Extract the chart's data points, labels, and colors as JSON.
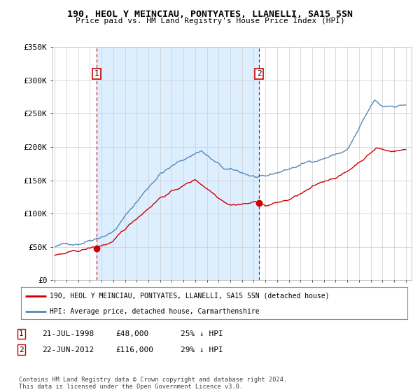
{
  "title": "190, HEOL Y MEINCIAU, PONTYATES, LLANELLI, SA15 5SN",
  "subtitle": "Price paid vs. HM Land Registry's House Price Index (HPI)",
  "legend_line1": "190, HEOL Y MEINCIAU, PONTYATES, LLANELLI, SA15 5SN (detached house)",
  "legend_line2": "HPI: Average price, detached house, Carmarthenshire",
  "annotation1_date": "21-JUL-1998",
  "annotation1_price": "£48,000",
  "annotation1_hpi": "25% ↓ HPI",
  "annotation2_date": "22-JUN-2012",
  "annotation2_price": "£116,000",
  "annotation2_hpi": "29% ↓ HPI",
  "footer": "Contains HM Land Registry data © Crown copyright and database right 2024.\nThis data is licensed under the Open Government Licence v3.0.",
  "red_color": "#cc0000",
  "blue_color": "#5588bb",
  "shade_color": "#ddeeff",
  "point1_x": 1998.55,
  "point1_y": 48000,
  "point2_x": 2012.47,
  "point2_y": 116000,
  "ylim": [
    0,
    350000
  ],
  "xlim": [
    1994.8,
    2025.5
  ],
  "ylabel_ticks": [
    0,
    50000,
    100000,
    150000,
    200000,
    250000,
    300000,
    350000
  ],
  "ylabel_labels": [
    "£0",
    "£50K",
    "£100K",
    "£150K",
    "£200K",
    "£250K",
    "£300K",
    "£350K"
  ],
  "background_color": "#ffffff",
  "grid_color": "#cccccc"
}
